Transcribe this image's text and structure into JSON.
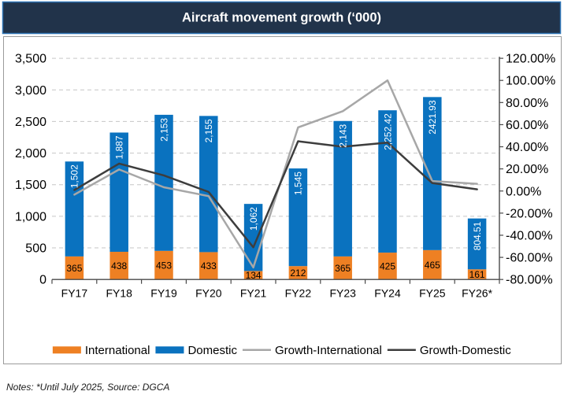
{
  "title": "Aircraft movement growth (‘000)",
  "notes": "Notes: *Until July 2025, Source: DGCA",
  "colors": {
    "title_bar_bg": "#21334A",
    "title_bar_border": "#2E74B5",
    "title_text": "#FFFFFF",
    "card_border": "#9B9B9B",
    "international": "#EE8023",
    "domestic": "#0A72BF",
    "growth_international": "#A7A7A7",
    "growth_domestic": "#3D3D3D",
    "gridline": "#C6C6C6",
    "axis_line": "#4A4A4A",
    "tick_label": "#000000",
    "bar_label_on_orange": "#000000",
    "bar_label_on_blue": "#FFFFFF",
    "notes_text": "#1A1A1A"
  },
  "legend": [
    {
      "label": "International",
      "swatch": "rect",
      "color_key": "international"
    },
    {
      "label": "Domestic",
      "swatch": "rect",
      "color_key": "domestic"
    },
    {
      "label": "Growth-International",
      "swatch": "line",
      "color_key": "growth_international"
    },
    {
      "label": "Growth-Domestic",
      "swatch": "line",
      "color_key": "growth_domestic"
    }
  ],
  "chart_data": {
    "type": "combo: stacked bar + line",
    "categories": [
      "FY17",
      "FY18",
      "FY19",
      "FY20",
      "FY21",
      "FY22",
      "FY23",
      "FY24",
      "FY25",
      "FY26*"
    ],
    "bar_series": [
      {
        "name": "International",
        "values": [
          365,
          438,
          453,
          433,
          134,
          212,
          365,
          425,
          465,
          161
        ],
        "labels": [
          "365",
          "438",
          "453",
          "433",
          "134",
          "212",
          "365",
          "425",
          "465",
          "161"
        ]
      },
      {
        "name": "Domestic",
        "values": [
          1502,
          1887,
          2153,
          2155,
          1062,
          1545,
          2143,
          2252.42,
          2421.93,
          804.51
        ],
        "labels": [
          "1,502",
          "1,887",
          "2,153",
          "2,155",
          "1,062",
          "1,545",
          "2,143",
          "2,252.42",
          "2421.93",
          "804.51"
        ]
      }
    ],
    "line_series": [
      {
        "name": "Growth-International",
        "values_pct": [
          -3.3,
          19.5,
          3.4,
          -4.6,
          -69.1,
          57.5,
          72.2,
          100,
          9,
          6.5
        ]
      },
      {
        "name": "Growth-Domestic",
        "values_pct": [
          0.9,
          24.8,
          14.1,
          -0.8,
          -50.9,
          45,
          40,
          43.8,
          7.2,
          1.5
        ]
      }
    ],
    "left_axis": {
      "min": 0,
      "max": 3500,
      "step": 500,
      "tick_labels": [
        "3,500",
        "3,000",
        "2,500",
        "2,000",
        "1,500",
        "1,000",
        "500",
        "0"
      ]
    },
    "right_axis": {
      "min": -80,
      "max": 120,
      "step": 20,
      "tick_labels": [
        "120.00%",
        "100.00%",
        "80.00%",
        "60.00%",
        "40.00%",
        "20.00%",
        "0.00%",
        "-20.00%",
        "-40.00%",
        "-60.00%",
        "-80.00%"
      ]
    },
    "grid": "horizontal dashed",
    "legend_position": "bottom"
  }
}
